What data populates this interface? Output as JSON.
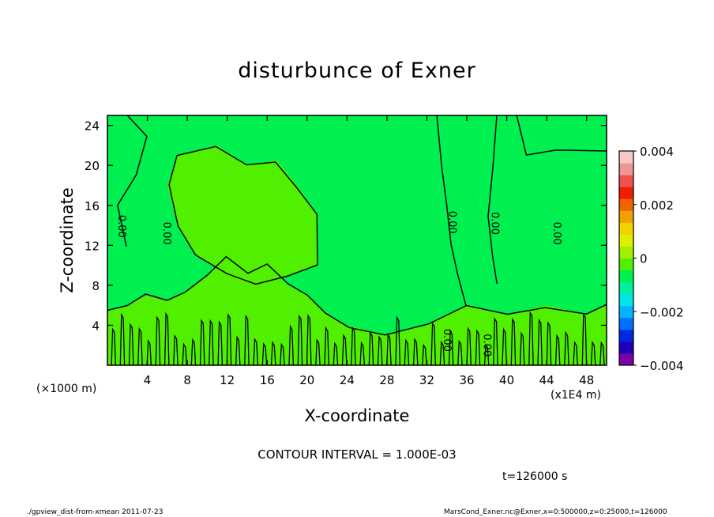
{
  "chart_data": {
    "type": "heatmap",
    "subtype": "filled-contour",
    "title": "disturbunce of Exner",
    "xlabel": "X-coordinate",
    "ylabel": "Z-coordinate",
    "x_unit_label": "(×1000 m)",
    "x_unit_label_secondary": "(x1E4 m)",
    "xlim": [
      0,
      50
    ],
    "ylim": [
      0,
      25
    ],
    "x_ticks": [
      4,
      8,
      12,
      16,
      20,
      24,
      28,
      32,
      36,
      40,
      44,
      48
    ],
    "y_ticks": [
      4,
      8,
      12,
      16,
      20,
      24
    ],
    "colorbar": {
      "range": [
        -0.004,
        0.004
      ],
      "tick_labels": [
        "0.004",
        "0.002",
        "0",
        "−0.002",
        "−0.004"
      ],
      "tick_values": [
        0.004,
        0.002,
        0,
        -0.002,
        -0.004
      ],
      "colors": [
        "#7a00a8",
        "#1e00b4",
        "#0028e0",
        "#0070ff",
        "#00b4ff",
        "#00e6e6",
        "#00f0a0",
        "#00f050",
        "#50f000",
        "#a0f000",
        "#dcf000",
        "#f0d200",
        "#f0a000",
        "#f06400",
        "#f01e00",
        "#f05050",
        "#f09696",
        "#f8c8c8"
      ]
    },
    "contour_labels": [
      {
        "text": "0.00",
        "x": 1.1,
        "y": 13.9
      },
      {
        "text": "0.00",
        "x": 5.6,
        "y": 13.2
      },
      {
        "text": "0.00",
        "x": 34.2,
        "y": 14.3
      },
      {
        "text": "0.00",
        "x": 38.5,
        "y": 14.2
      },
      {
        "text": "0.00",
        "x": 44.7,
        "y": 13.2
      },
      {
        "text": "0.00",
        "x": 33.7,
        "y": 2.5
      },
      {
        "text": "0.00",
        "x": 37.7,
        "y": 2.0
      }
    ],
    "contour_interval_text": "CONTOUR INTERVAL = 1.000E-03",
    "time_text": "t=126000 s"
  },
  "footer": {
    "left": "./gpview_dist-from-xmean  2011-07-23",
    "right": "MarsCond_Exner.nc@Exner,x=0:500000,z=0:25000,t=126000"
  },
  "colors": {
    "field_zero": "#00f050",
    "field_low_positive": "#50f000"
  }
}
